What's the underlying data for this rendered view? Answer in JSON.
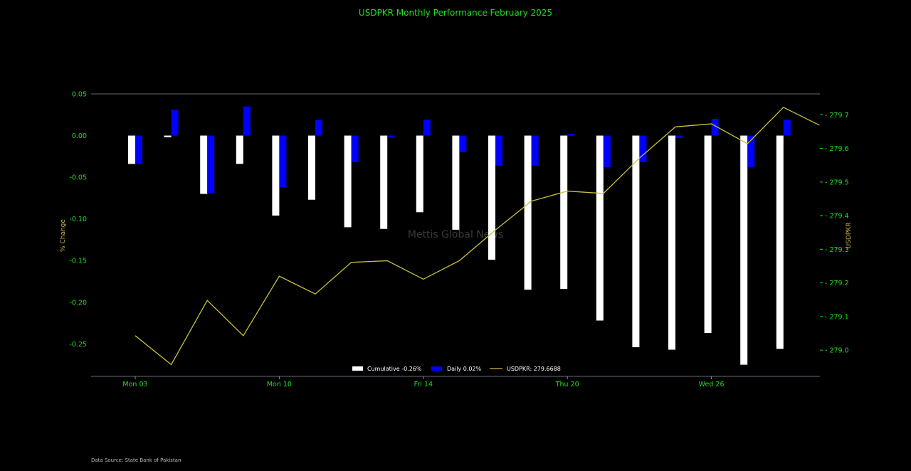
{
  "chart_data": {
    "type": "bar",
    "title": "USDPKR Monthly Performance February 2025",
    "ylabel": "% Change",
    "y2label": "USDPKR",
    "x_tick_labels": [
      "Mon 03",
      "Mon 10",
      "Fri 14",
      "Thu 20",
      "Wed 26"
    ],
    "x_tick_indices": [
      0,
      4,
      8,
      12,
      16
    ],
    "y_ticks": [
      0.05,
      0.0,
      -0.05,
      -0.1,
      -0.15,
      -0.2,
      -0.25
    ],
    "y_tick_labels": [
      "0.05",
      "0.00",
      "-0.05",
      "-0.10",
      "-0.15",
      "-0.20",
      "-0.25"
    ],
    "y2_ticks": [
      279.7,
      279.6,
      279.5,
      279.4,
      279.3,
      279.2,
      279.1,
      279.0
    ],
    "y2_tick_labels": [
      "279.7",
      "279.6",
      "279.5",
      "279.4",
      "279.3",
      "279.2",
      "279.1",
      "279.0"
    ],
    "ylim": [
      -0.289,
      0.05
    ],
    "y2lim": [
      278.922,
      279.762
    ],
    "series": [
      {
        "name": "Cumulative -0.26%",
        "kind": "bar",
        "color": "#ffffff",
        "values": [
          -0.034,
          -0.002,
          -0.07,
          -0.034,
          -0.096,
          -0.077,
          -0.11,
          -0.112,
          -0.092,
          -0.113,
          -0.149,
          -0.185,
          -0.184,
          -0.222,
          -0.254,
          -0.257,
          -0.237,
          -0.275,
          -0.256
        ]
      },
      {
        "name": "Daily 0.02%",
        "kind": "bar",
        "color": "#0000ff",
        "values": [
          -0.034,
          0.031,
          -0.069,
          0.035,
          -0.062,
          0.019,
          -0.032,
          -0.002,
          0.019,
          -0.02,
          -0.036,
          -0.036,
          0.002,
          -0.038,
          -0.032,
          -0.003,
          0.02,
          -0.038,
          0.019
        ]
      },
      {
        "name": "USDPKR: 279.6688",
        "kind": "line",
        "axis": "right",
        "color": "#c9bf3a",
        "values": [
          279.043,
          278.957,
          279.148,
          279.043,
          279.22,
          279.167,
          279.261,
          279.266,
          279.211,
          279.266,
          279.357,
          279.443,
          279.473,
          279.466,
          279.571,
          279.664,
          279.673,
          279.614,
          279.722,
          279.669
        ]
      }
    ],
    "watermark": "Mettis Global News",
    "legend_position": "bottom-center",
    "grid": false
  },
  "footer": {
    "source": "Data Source: State Bank of Pakistan"
  }
}
